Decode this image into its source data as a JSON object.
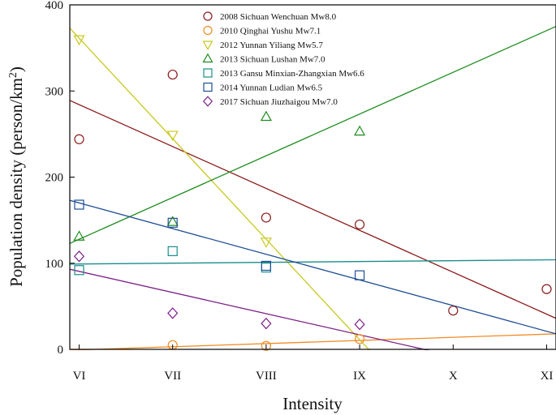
{
  "chart_data": {
    "type": "scatter",
    "title": "",
    "xlabel": "Intensity",
    "ylabel_main": "Population density (person/km",
    "ylabel_sup": "2",
    "ylabel_close": ")",
    "categories": [
      "VI",
      "VII",
      "VIII",
      "IX",
      "X",
      "XI"
    ],
    "xlim": [
      0.9,
      6.1
    ],
    "ylim": [
      0,
      400
    ],
    "yticks": [
      0,
      100,
      200,
      300,
      400
    ],
    "legend_position": "top-right",
    "series": [
      {
        "name": "2008 Sichuan Wenchuan Mw8.0",
        "marker": "circle",
        "color": "#8b1a1a",
        "x": [
          1,
          2,
          3,
          4,
          5,
          6
        ],
        "y": [
          244,
          319,
          153,
          145,
          45,
          70
        ],
        "fit": {
          "x": [
            0.9,
            6.1
          ],
          "y": [
            289,
            36
          ]
        }
      },
      {
        "name": "2010 Qinghai Yushu Mw7.1",
        "marker": "circle",
        "color": "#f08a24",
        "x": [
          2,
          3,
          4
        ],
        "y": [
          5,
          4,
          12
        ],
        "fit": {
          "x": [
            0.9,
            6.1
          ],
          "y": [
            -1,
            18
          ]
        }
      },
      {
        "name": "2012 Yunnan Yiliang Mw5.7",
        "marker": "triangle-down",
        "color": "#c8c81e",
        "x": [
          1,
          2,
          3
        ],
        "y": [
          360,
          249,
          125
        ],
        "fit": {
          "x": [
            0.9,
            4.13
          ],
          "y": [
            373,
            -4
          ]
        }
      },
      {
        "name": "2013 Sichuan Lushan Mw7.0",
        "marker": "triangle-up",
        "color": "#1e8c1e",
        "x": [
          1,
          2,
          3,
          4
        ],
        "y": [
          131,
          148,
          270,
          253
        ],
        "fit": {
          "x": [
            0.9,
            6.1
          ],
          "y": [
            123,
            375
          ]
        }
      },
      {
        "name": "2013 Gansu Minxian-Zhangxian Mw6.6",
        "marker": "square",
        "color": "#1a8c8c",
        "x": [
          1,
          2,
          3
        ],
        "y": [
          92,
          114,
          95
        ],
        "fit": {
          "x": [
            0.9,
            6.1
          ],
          "y": [
            99,
            104
          ]
        }
      },
      {
        "name": "2014 Yunnan Ludian Mw6.5",
        "marker": "square",
        "color": "#1f4e96",
        "x": [
          1,
          2,
          3,
          4
        ],
        "y": [
          168,
          147,
          97,
          86
        ],
        "fit": {
          "x": [
            0.9,
            6.1
          ],
          "y": [
            173,
            18
          ]
        }
      },
      {
        "name": "2017 Sichuan Jiuzhaigou Mw7.0",
        "marker": "diamond",
        "color": "#7b1f86",
        "x": [
          1,
          2,
          3,
          4
        ],
        "y": [
          108,
          42,
          30,
          29
        ],
        "fit": {
          "x": [
            0.9,
            4.85
          ],
          "y": [
            93,
            -4
          ]
        }
      }
    ]
  }
}
